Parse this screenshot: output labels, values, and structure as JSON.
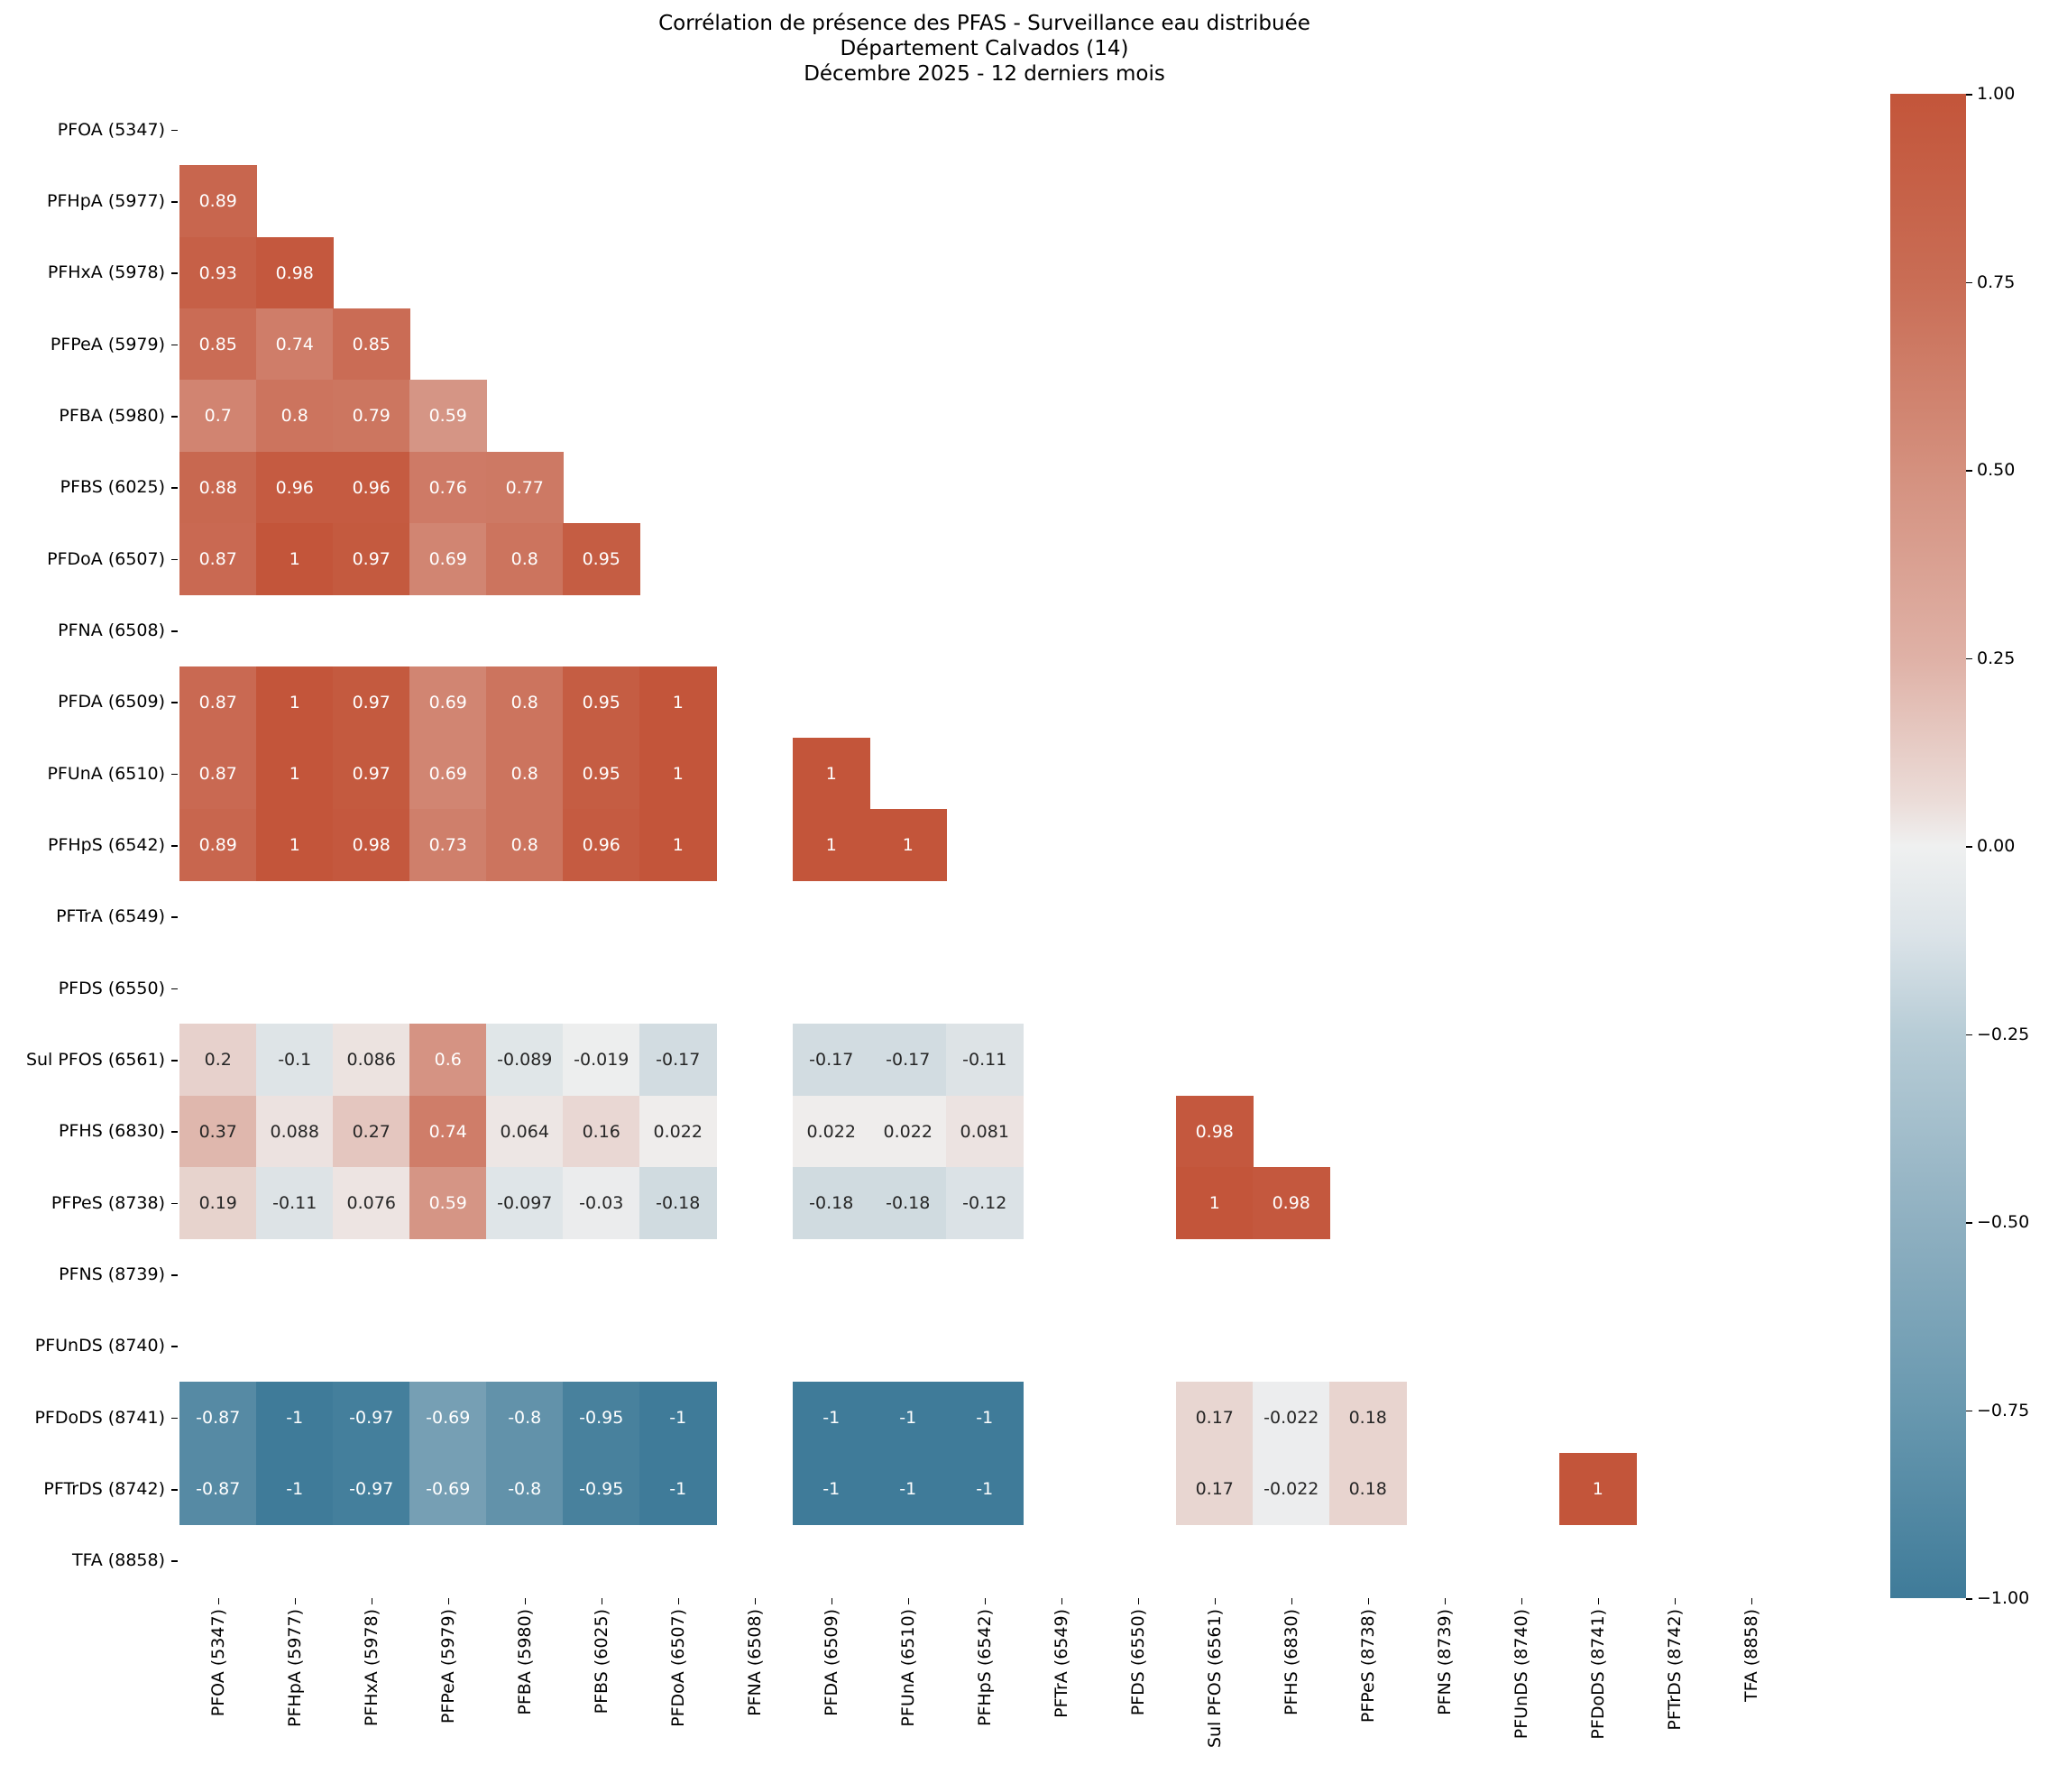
{
  "chart_data": {
    "type": "heatmap",
    "title": "Corrélation de présence des PFAS - Surveillance eau distribuée",
    "subtitle_lines": [
      "Département Calvados (14)",
      "Décembre 2025 - 12 derniers mois"
    ],
    "xlabel": "",
    "ylabel": "",
    "mask": "upper triangle incl. diagonal; rows/cols with no data blank",
    "labels": [
      "PFOA (5347)",
      "PFHpA (5977)",
      "PFHxA (5978)",
      "PFPeA (5979)",
      "PFBA (5980)",
      "PFBS (6025)",
      "PFDoA (6507)",
      "PFNA (6508)",
      "PFDA (6509)",
      "PFUnA (6510)",
      "PFHpS (6542)",
      "PFTrA (6549)",
      "PFDS (6550)",
      "Sul PFOS (6561)",
      "PFHS (6830)",
      "PFPeS (8738)",
      "PFNS (8739)",
      "PFUnDS (8740)",
      "PFDoDS (8741)",
      "PFTrDS (8742)",
      "TFA (8858)"
    ],
    "matrix": [
      [
        null,
        null,
        null,
        null,
        null,
        null,
        null,
        null,
        null,
        null,
        null,
        null,
        null,
        null,
        null,
        null,
        null,
        null,
        null,
        null,
        null
      ],
      [
        0.89,
        null,
        null,
        null,
        null,
        null,
        null,
        null,
        null,
        null,
        null,
        null,
        null,
        null,
        null,
        null,
        null,
        null,
        null,
        null,
        null
      ],
      [
        0.93,
        0.98,
        null,
        null,
        null,
        null,
        null,
        null,
        null,
        null,
        null,
        null,
        null,
        null,
        null,
        null,
        null,
        null,
        null,
        null,
        null
      ],
      [
        0.85,
        0.74,
        0.85,
        null,
        null,
        null,
        null,
        null,
        null,
        null,
        null,
        null,
        null,
        null,
        null,
        null,
        null,
        null,
        null,
        null,
        null
      ],
      [
        0.7,
        0.8,
        0.79,
        0.59,
        null,
        null,
        null,
        null,
        null,
        null,
        null,
        null,
        null,
        null,
        null,
        null,
        null,
        null,
        null,
        null,
        null
      ],
      [
        0.88,
        0.96,
        0.96,
        0.76,
        0.77,
        null,
        null,
        null,
        null,
        null,
        null,
        null,
        null,
        null,
        null,
        null,
        null,
        null,
        null,
        null,
        null
      ],
      [
        0.87,
        1,
        0.97,
        0.69,
        0.8,
        0.95,
        null,
        null,
        null,
        null,
        null,
        null,
        null,
        null,
        null,
        null,
        null,
        null,
        null,
        null,
        null
      ],
      [
        null,
        null,
        null,
        null,
        null,
        null,
        null,
        null,
        null,
        null,
        null,
        null,
        null,
        null,
        null,
        null,
        null,
        null,
        null,
        null,
        null
      ],
      [
        0.87,
        1,
        0.97,
        0.69,
        0.8,
        0.95,
        1,
        null,
        null,
        null,
        null,
        null,
        null,
        null,
        null,
        null,
        null,
        null,
        null,
        null,
        null
      ],
      [
        0.87,
        1,
        0.97,
        0.69,
        0.8,
        0.95,
        1,
        null,
        1,
        null,
        null,
        null,
        null,
        null,
        null,
        null,
        null,
        null,
        null,
        null,
        null
      ],
      [
        0.89,
        1,
        0.98,
        0.73,
        0.8,
        0.96,
        1,
        null,
        1,
        1,
        null,
        null,
        null,
        null,
        null,
        null,
        null,
        null,
        null,
        null,
        null
      ],
      [
        null,
        null,
        null,
        null,
        null,
        null,
        null,
        null,
        null,
        null,
        null,
        null,
        null,
        null,
        null,
        null,
        null,
        null,
        null,
        null,
        null
      ],
      [
        null,
        null,
        null,
        null,
        null,
        null,
        null,
        null,
        null,
        null,
        null,
        null,
        null,
        null,
        null,
        null,
        null,
        null,
        null,
        null,
        null
      ],
      [
        0.2,
        -0.1,
        0.086,
        0.6,
        -0.089,
        -0.019,
        -0.17,
        null,
        -0.17,
        -0.17,
        -0.11,
        null,
        null,
        null,
        null,
        null,
        null,
        null,
        null,
        null,
        null
      ],
      [
        0.37,
        0.088,
        0.27,
        0.74,
        0.064,
        0.16,
        0.022,
        null,
        0.022,
        0.022,
        0.081,
        null,
        null,
        0.98,
        null,
        null,
        null,
        null,
        null,
        null,
        null
      ],
      [
        0.19,
        -0.11,
        0.076,
        0.59,
        -0.097,
        -0.03,
        -0.18,
        null,
        -0.18,
        -0.18,
        -0.12,
        null,
        null,
        1,
        0.98,
        null,
        null,
        null,
        null,
        null,
        null
      ],
      [
        null,
        null,
        null,
        null,
        null,
        null,
        null,
        null,
        null,
        null,
        null,
        null,
        null,
        null,
        null,
        null,
        null,
        null,
        null,
        null,
        null
      ],
      [
        null,
        null,
        null,
        null,
        null,
        null,
        null,
        null,
        null,
        null,
        null,
        null,
        null,
        null,
        null,
        null,
        null,
        null,
        null,
        null,
        null
      ],
      [
        -0.87,
        -1,
        -0.97,
        -0.69,
        -0.8,
        -0.95,
        -1,
        null,
        -1,
        -1,
        -1,
        null,
        null,
        0.17,
        -0.022,
        0.18,
        null,
        null,
        null,
        null,
        null
      ],
      [
        -0.87,
        -1,
        -0.97,
        -0.69,
        -0.8,
        -0.95,
        -1,
        null,
        -1,
        -1,
        -1,
        null,
        null,
        0.17,
        -0.022,
        0.18,
        null,
        null,
        1,
        null,
        null
      ],
      [
        null,
        null,
        null,
        null,
        null,
        null,
        null,
        null,
        null,
        null,
        null,
        null,
        null,
        null,
        null,
        null,
        null,
        null,
        null,
        null,
        null
      ]
    ],
    "colorbar": {
      "vmin": -1,
      "vmax": 1,
      "ticks": [
        "1.00",
        "0.75",
        "0.50",
        "0.25",
        "0.00",
        "−0.25",
        "−0.50",
        "−0.75",
        "−1.00"
      ],
      "tick_values": [
        1,
        0.75,
        0.5,
        0.25,
        0,
        -0.25,
        -0.5,
        -0.75,
        -1
      ],
      "colors": {
        "low": "#3f7b99",
        "mid": "#f0f0f0",
        "high": "#c3553a"
      }
    },
    "legend_position": "right (colorbar)",
    "grid": false
  }
}
